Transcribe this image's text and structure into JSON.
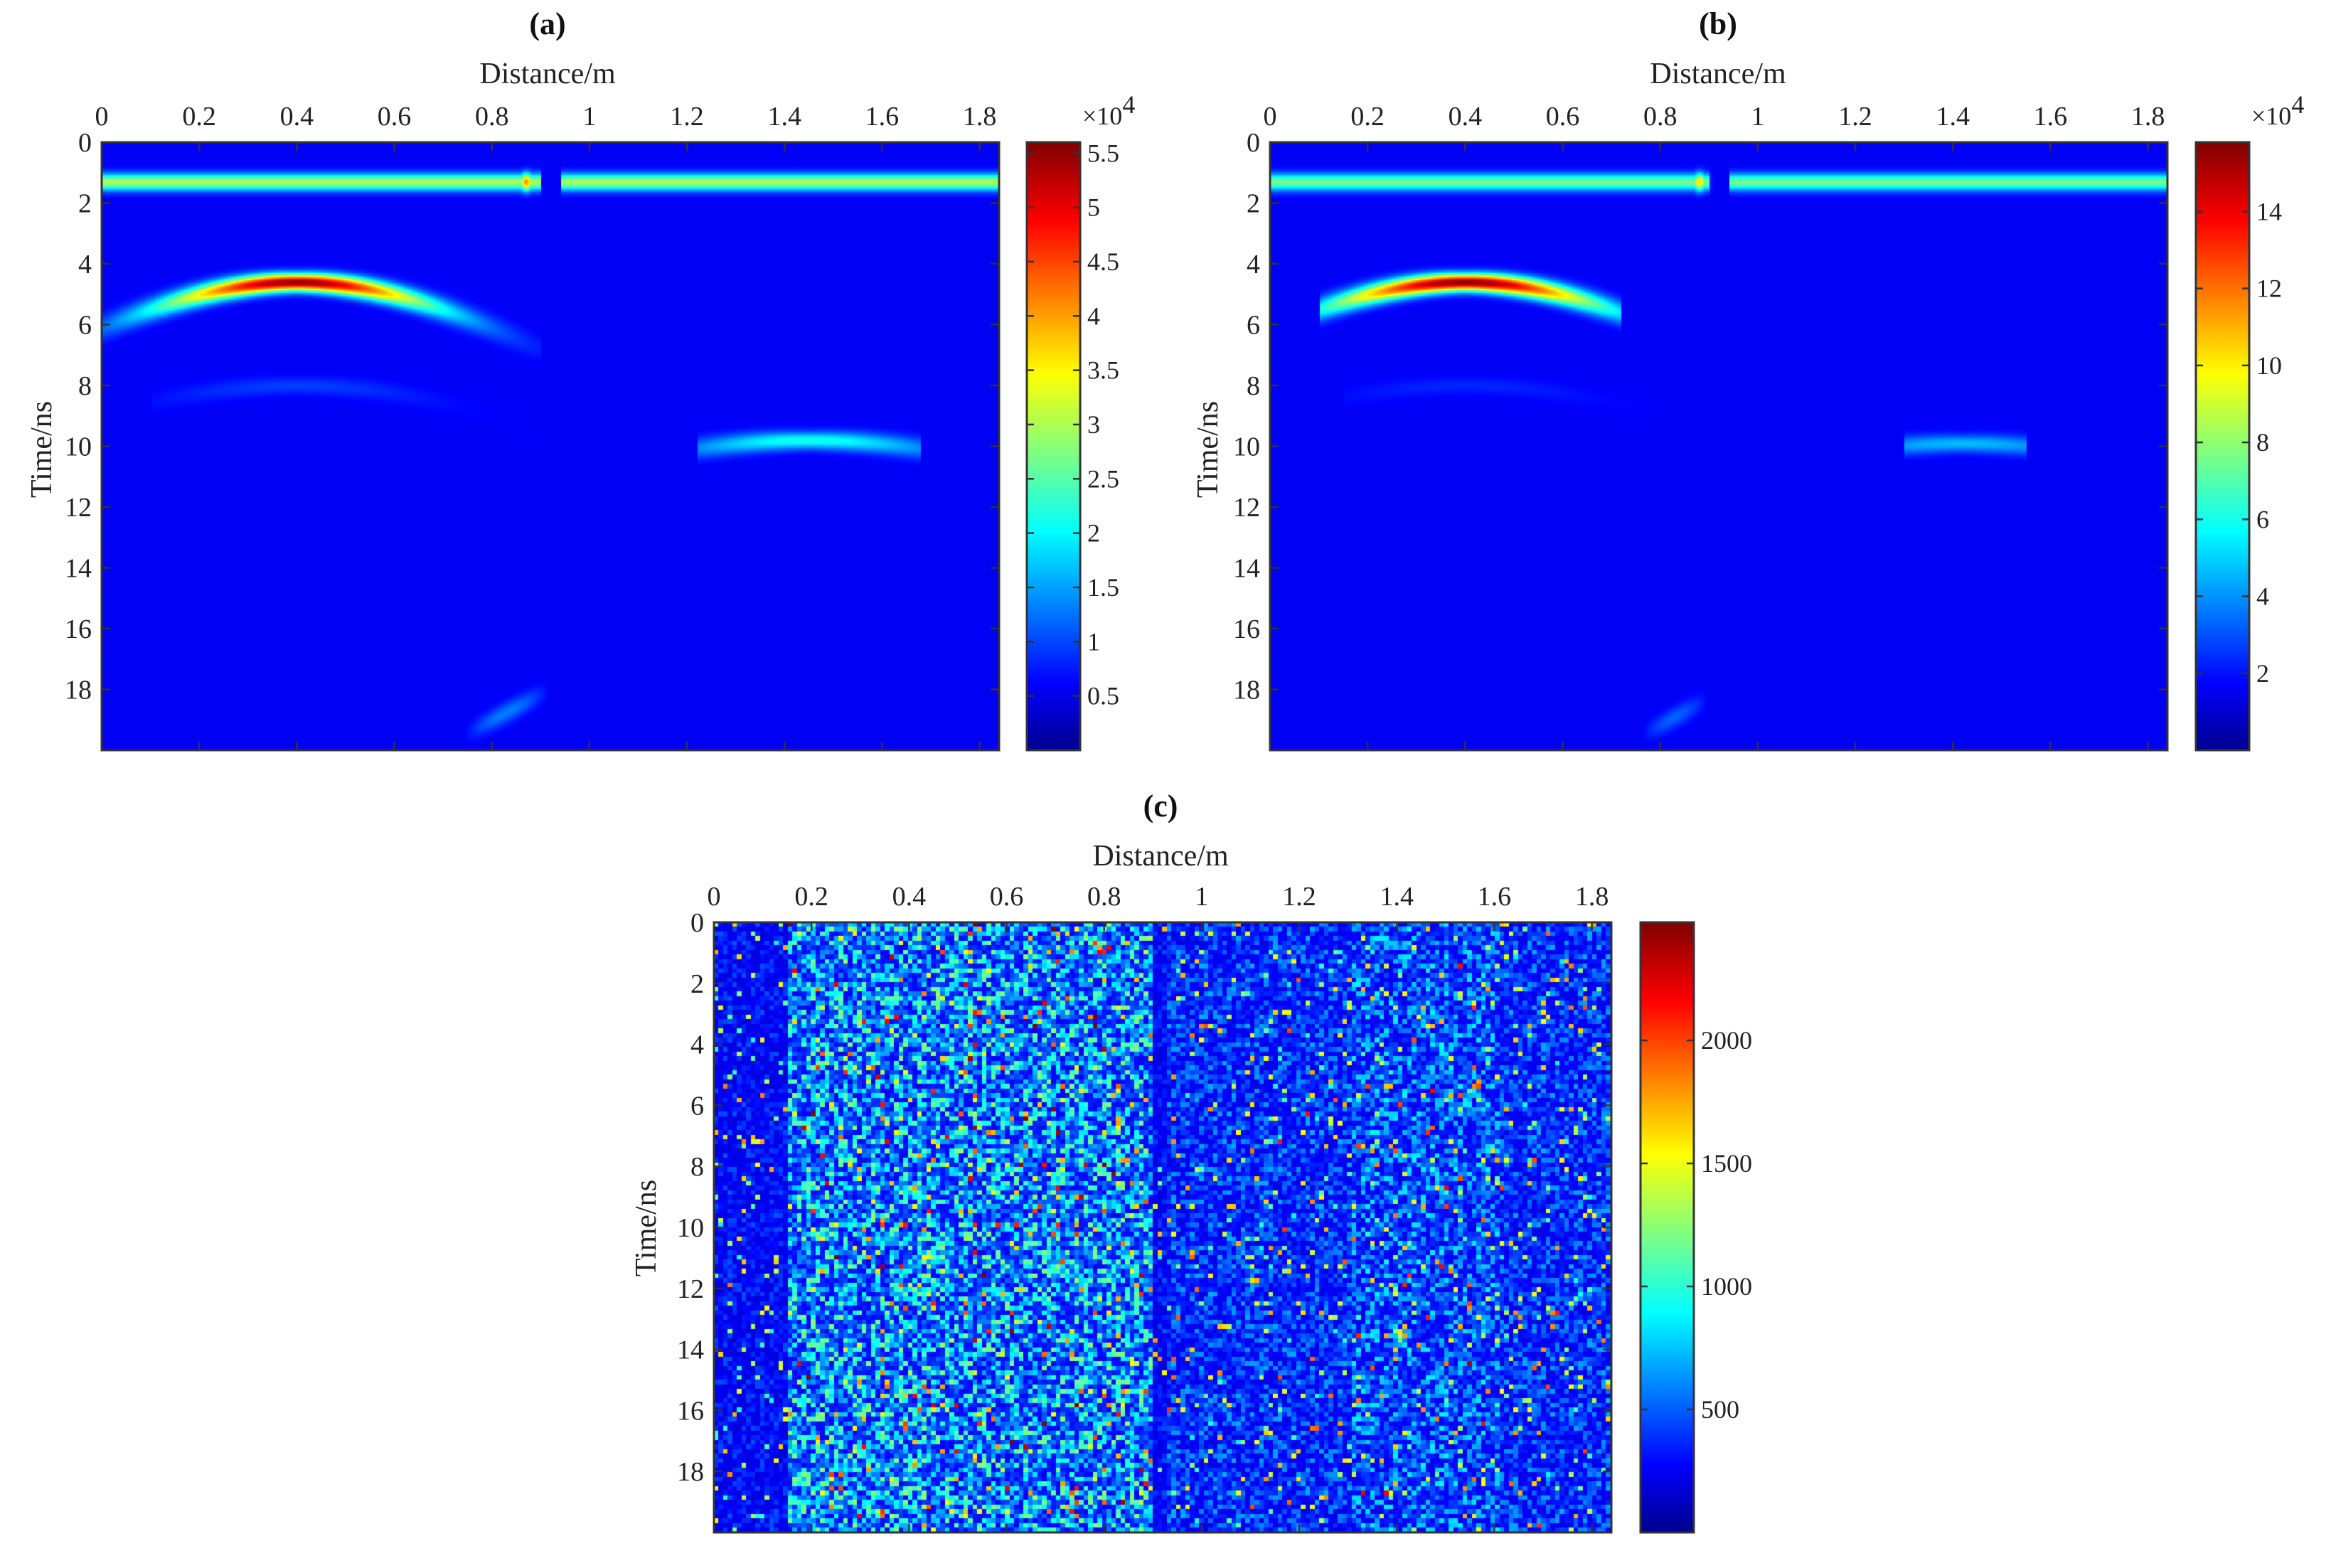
{
  "chart_data": [
    {
      "type": "heatmap",
      "panel_label": "(a)",
      "xlabel": "Distance/m",
      "ylabel": "Time/ns",
      "xlim": [
        0,
        1.84
      ],
      "ylim": [
        0,
        20
      ],
      "y_reversed": true,
      "x_axis_position": "top",
      "x_ticks": [
        "0",
        "0.2",
        "0.4",
        "0.6",
        "0.8",
        "1",
        "1.2",
        "1.4",
        "1.6",
        "1.8"
      ],
      "y_ticks": [
        "0",
        "2",
        "4",
        "6",
        "8",
        "10",
        "12",
        "14",
        "16",
        "18"
      ],
      "colormap": "jet",
      "colorbar": {
        "min": 0,
        "max": 5.6,
        "exponent_label": "×10",
        "exponent": "4",
        "ticks": [
          "0.5",
          "1",
          "1.5",
          "2",
          "2.5",
          "3",
          "3.5",
          "4",
          "4.5",
          "5",
          "5.5"
        ]
      },
      "features": [
        {
          "kind": "direct_wave",
          "time_ns": 1.3,
          "level": 0.48,
          "gap_x": [
            0.9,
            0.94
          ],
          "hotspot_x": 0.87,
          "hotspot_level": 0.7
        },
        {
          "kind": "hyperbola",
          "apex_x": 0.4,
          "apex_t": 4.6,
          "velocity": 0.1,
          "peak_level": 0.98,
          "x_range": [
            0.0,
            0.9
          ]
        },
        {
          "kind": "hyperbola",
          "apex_x": 1.45,
          "apex_t": 9.8,
          "velocity": 0.1,
          "peak_level": 0.32,
          "x_range": [
            1.22,
            1.68
          ]
        },
        {
          "kind": "hyperbola",
          "apex_x": 0.4,
          "apex_t": 8.0,
          "velocity": 0.1,
          "peak_level": 0.08,
          "x_range": [
            0.1,
            0.9
          ]
        },
        {
          "kind": "streak",
          "x_range": [
            0.74,
            0.92
          ],
          "t_range": [
            19.5,
            18.0
          ],
          "peak_level": 0.15
        }
      ]
    },
    {
      "type": "heatmap",
      "panel_label": "(b)",
      "xlabel": "Distance/m",
      "ylabel": "Time/ns",
      "xlim": [
        0,
        1.84
      ],
      "ylim": [
        0,
        20
      ],
      "y_reversed": true,
      "x_axis_position": "top",
      "x_ticks": [
        "0",
        "0.2",
        "0.4",
        "0.6",
        "0.8",
        "1",
        "1.2",
        "1.4",
        "1.6",
        "1.8"
      ],
      "y_ticks": [
        "0",
        "2",
        "4",
        "6",
        "8",
        "10",
        "12",
        "14",
        "16",
        "18"
      ],
      "colormap": "jet",
      "colorbar": {
        "min": 0,
        "max": 15.8,
        "exponent_label": "×10",
        "exponent": "4",
        "ticks": [
          "2",
          "4",
          "6",
          "8",
          "10",
          "12",
          "14"
        ]
      },
      "features": [
        {
          "kind": "direct_wave",
          "time_ns": 1.3,
          "level": 0.42,
          "gap_x": [
            0.9,
            0.94
          ],
          "hotspot_x": 0.88,
          "hotspot_level": 0.62
        },
        {
          "kind": "hyperbola",
          "apex_x": 0.4,
          "apex_t": 4.6,
          "velocity": 0.1,
          "peak_level": 0.99,
          "x_range": [
            0.1,
            0.72
          ]
        },
        {
          "kind": "hyperbola",
          "apex_x": 1.42,
          "apex_t": 9.9,
          "velocity": 0.1,
          "peak_level": 0.22,
          "x_range": [
            1.3,
            1.55
          ]
        },
        {
          "kind": "hyperbola",
          "apex_x": 0.4,
          "apex_t": 8.0,
          "velocity": 0.1,
          "peak_level": 0.05,
          "x_range": [
            0.15,
            0.8
          ]
        },
        {
          "kind": "streak",
          "x_range": [
            0.76,
            0.9
          ],
          "t_range": [
            19.5,
            18.3
          ],
          "peak_level": 0.12
        }
      ]
    },
    {
      "type": "heatmap",
      "panel_label": "(c)",
      "xlabel": "Distance/m",
      "ylabel": "Time/ns",
      "xlim": [
        0,
        1.84
      ],
      "ylim": [
        0,
        20
      ],
      "y_reversed": true,
      "x_axis_position": "top",
      "x_ticks": [
        "0",
        "0.2",
        "0.4",
        "0.6",
        "0.8",
        "1",
        "1.2",
        "1.4",
        "1.6",
        "1.8"
      ],
      "y_ticks": [
        "0",
        "2",
        "4",
        "6",
        "8",
        "10",
        "12",
        "14",
        "16",
        "18"
      ],
      "colormap": "jet",
      "colorbar": {
        "min": 0,
        "max": 2480,
        "exponent_label": "",
        "exponent": "",
        "ticks": [
          "500",
          "1000",
          "1500",
          "2000"
        ]
      },
      "features": [
        {
          "kind": "noise",
          "dense_band_x": [
            0.15,
            0.9
          ],
          "sparse_band_x": [
            0.92,
            1.84
          ],
          "dense_mean": 0.24,
          "sparse_mean": 0.12,
          "right_cluster_x": [
            1.3,
            1.6
          ]
        }
      ]
    }
  ]
}
